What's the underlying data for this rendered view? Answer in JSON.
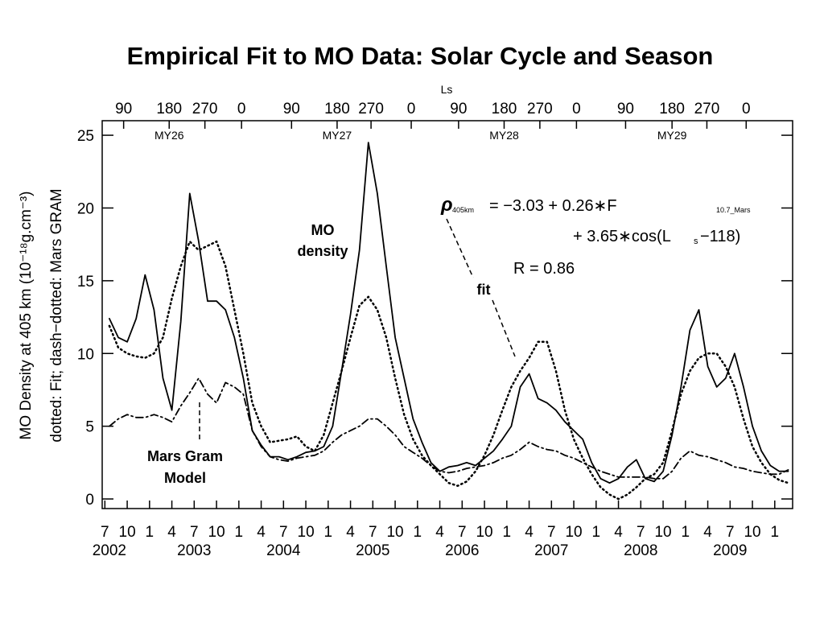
{
  "chart_data": {
    "type": "line",
    "title": "Empirical Fit to MO Data: Solar Cycle and Season",
    "y_label": [
      "MO Density at 405 km (10⁻¹⁸g.cm⁻³)",
      "dotted: Fit; dash−dotted: Mars GRAM"
    ],
    "x2_label": "Ls",
    "xlim": [
      2002.47,
      2010.2
    ],
    "ylim": [
      -0.66,
      26
    ],
    "yticks": [
      0,
      5,
      10,
      15,
      20,
      25
    ],
    "xticks": [
      {
        "value": 2002.5,
        "label": "7"
      },
      {
        "value": 2002.75,
        "label": "10"
      },
      {
        "value": 2003.0,
        "label": "1"
      },
      {
        "value": 2003.25,
        "label": "4"
      },
      {
        "value": 2003.5,
        "label": "7"
      },
      {
        "value": 2003.75,
        "label": "10"
      },
      {
        "value": 2004.0,
        "label": "1"
      },
      {
        "value": 2004.25,
        "label": "4"
      },
      {
        "value": 2004.5,
        "label": "7"
      },
      {
        "value": 2004.75,
        "label": "10"
      },
      {
        "value": 2005.0,
        "label": "1"
      },
      {
        "value": 2005.25,
        "label": "4"
      },
      {
        "value": 2005.5,
        "label": "7"
      },
      {
        "value": 2005.75,
        "label": "10"
      },
      {
        "value": 2006.0,
        "label": "1"
      },
      {
        "value": 2006.25,
        "label": "4"
      },
      {
        "value": 2006.5,
        "label": "7"
      },
      {
        "value": 2006.75,
        "label": "10"
      },
      {
        "value": 2007.0,
        "label": "1"
      },
      {
        "value": 2007.25,
        "label": "4"
      },
      {
        "value": 2007.5,
        "label": "7"
      },
      {
        "value": 2007.75,
        "label": "10"
      },
      {
        "value": 2008.0,
        "label": "1"
      },
      {
        "value": 2008.25,
        "label": "4"
      },
      {
        "value": 2008.5,
        "label": "7"
      },
      {
        "value": 2008.75,
        "label": "10"
      },
      {
        "value": 2009.0,
        "label": "1"
      },
      {
        "value": 2009.25,
        "label": "4"
      },
      {
        "value": 2009.5,
        "label": "7"
      },
      {
        "value": 2009.75,
        "label": "10"
      },
      {
        "value": 2010.0,
        "label": "1"
      }
    ],
    "year_labels": [
      {
        "value": 2002.55,
        "label": "2002"
      },
      {
        "value": 2003.5,
        "label": "2003"
      },
      {
        "value": 2004.5,
        "label": "2004"
      },
      {
        "value": 2005.5,
        "label": "2005"
      },
      {
        "value": 2006.5,
        "label": "2006"
      },
      {
        "value": 2007.5,
        "label": "2007"
      },
      {
        "value": 2008.5,
        "label": "2008"
      },
      {
        "value": 2009.5,
        "label": "2009"
      }
    ],
    "x2ticks": [
      {
        "value": 2002.71,
        "label": "90"
      },
      {
        "value": 2003.22,
        "label": "180"
      },
      {
        "value": 2003.62,
        "label": "270"
      },
      {
        "value": 2004.03,
        "label": "0"
      },
      {
        "value": 2004.59,
        "label": "90"
      },
      {
        "value": 2005.1,
        "label": "180"
      },
      {
        "value": 2005.48,
        "label": "270"
      },
      {
        "value": 2005.93,
        "label": "0"
      },
      {
        "value": 2006.46,
        "label": "90"
      },
      {
        "value": 2006.97,
        "label": "180"
      },
      {
        "value": 2007.37,
        "label": "270"
      },
      {
        "value": 2007.78,
        "label": "0"
      },
      {
        "value": 2008.33,
        "label": "90"
      },
      {
        "value": 2008.85,
        "label": "180"
      },
      {
        "value": 2009.24,
        "label": "270"
      },
      {
        "value": 2009.68,
        "label": "0"
      }
    ],
    "mars_years": [
      {
        "value": 2003.22,
        "label": "MY26"
      },
      {
        "value": 2005.1,
        "label": "MY27"
      },
      {
        "value": 2006.97,
        "label": "MY28"
      },
      {
        "value": 2008.85,
        "label": "MY29"
      }
    ],
    "x": [
      2002.55,
      2002.65,
      2002.75,
      2002.85,
      2002.95,
      2003.05,
      2003.15,
      2003.25,
      2003.35,
      2003.45,
      2003.55,
      2003.65,
      2003.75,
      2003.85,
      2003.95,
      2004.05,
      2004.15,
      2004.25,
      2004.35,
      2004.45,
      2004.55,
      2004.65,
      2004.75,
      2004.85,
      2004.95,
      2005.05,
      2005.15,
      2005.25,
      2005.35,
      2005.45,
      2005.55,
      2005.65,
      2005.75,
      2005.85,
      2005.95,
      2006.05,
      2006.15,
      2006.25,
      2006.35,
      2006.45,
      2006.55,
      2006.65,
      2006.75,
      2006.85,
      2006.95,
      2007.05,
      2007.15,
      2007.25,
      2007.35,
      2007.45,
      2007.55,
      2007.65,
      2007.75,
      2007.85,
      2007.95,
      2008.05,
      2008.15,
      2008.25,
      2008.35,
      2008.45,
      2008.55,
      2008.65,
      2008.75,
      2008.85,
      2008.95,
      2009.05,
      2009.15,
      2009.25,
      2009.35,
      2009.45,
      2009.55,
      2009.65,
      2009.75,
      2009.85,
      2009.95,
      2010.05,
      2010.15
    ],
    "series": [
      {
        "name": "MO density",
        "color": "#000000",
        "style": "solid",
        "values": [
          12.4,
          11.1,
          10.8,
          12.4,
          15.4,
          13.0,
          8.3,
          6.1,
          12.2,
          21.0,
          17.7,
          13.6,
          13.6,
          13.0,
          11.1,
          8.3,
          4.7,
          3.7,
          2.9,
          2.9,
          2.7,
          2.9,
          3.2,
          3.3,
          3.6,
          5.0,
          8.8,
          12.7,
          17.1,
          24.5,
          21.0,
          16.0,
          11.1,
          8.3,
          5.5,
          3.9,
          2.5,
          1.9,
          2.2,
          2.3,
          2.5,
          2.3,
          2.8,
          3.3,
          4.1,
          5.0,
          7.7,
          8.6,
          6.9,
          6.6,
          6.1,
          5.3,
          4.7,
          4.1,
          2.5,
          1.4,
          1.1,
          1.4,
          2.2,
          2.7,
          1.4,
          1.2,
          1.9,
          4.4,
          7.7,
          11.6,
          13.0,
          9.1,
          7.7,
          8.3,
          10.0,
          7.7,
          5.0,
          3.3,
          2.3,
          1.9,
          1.9
        ]
      },
      {
        "name": "fit",
        "color": "#000000",
        "style": "dotted",
        "values": [
          11.9,
          10.4,
          10.0,
          9.8,
          9.7,
          10.0,
          11.1,
          13.8,
          16.0,
          17.7,
          17.1,
          17.4,
          17.7,
          16.0,
          13.0,
          10.0,
          6.6,
          5.0,
          3.9,
          4.0,
          4.1,
          4.3,
          3.6,
          3.3,
          4.4,
          6.6,
          8.8,
          11.1,
          13.3,
          13.9,
          13.0,
          11.1,
          8.3,
          5.8,
          4.1,
          3.0,
          2.3,
          1.7,
          1.1,
          0.9,
          1.2,
          1.9,
          3.0,
          4.4,
          6.1,
          7.7,
          8.8,
          9.7,
          10.8,
          10.8,
          8.8,
          6.1,
          4.1,
          2.8,
          1.7,
          0.8,
          0.3,
          0.0,
          0.3,
          0.8,
          1.4,
          1.7,
          2.5,
          4.7,
          7.2,
          8.8,
          9.7,
          10.0,
          10.0,
          9.1,
          7.7,
          5.5,
          3.6,
          2.5,
          1.7,
          1.3,
          1.1
        ]
      },
      {
        "name": "Mars Gram Model",
        "color": "#000000",
        "style": "dashdot",
        "values": [
          5.0,
          5.5,
          5.8,
          5.6,
          5.6,
          5.8,
          5.6,
          5.3,
          6.4,
          7.3,
          8.3,
          7.2,
          6.6,
          8.0,
          7.7,
          7.2,
          4.7,
          3.6,
          2.9,
          2.7,
          2.6,
          2.8,
          2.9,
          3.0,
          3.3,
          3.9,
          4.4,
          4.7,
          5.0,
          5.5,
          5.5,
          5.0,
          4.4,
          3.6,
          3.2,
          2.8,
          2.3,
          1.9,
          1.8,
          1.9,
          2.1,
          2.2,
          2.3,
          2.5,
          2.8,
          3.0,
          3.4,
          3.9,
          3.6,
          3.4,
          3.3,
          3.0,
          2.8,
          2.5,
          2.2,
          1.9,
          1.7,
          1.5,
          1.5,
          1.5,
          1.5,
          1.4,
          1.4,
          1.9,
          2.8,
          3.3,
          3.0,
          2.9,
          2.7,
          2.5,
          2.2,
          2.1,
          1.9,
          1.8,
          1.7,
          1.7,
          2.0
        ]
      }
    ],
    "annotations": {
      "mo_density": [
        "MO",
        "density"
      ],
      "fit": "fit",
      "gram": [
        "Mars Gram",
        "Model"
      ]
    },
    "equation": {
      "rho": "ρ",
      "rho_sub": "405km",
      "part1": "= −3.03 + 0.26∗F",
      "f_sub": "10.7_Mars",
      "part2": "+ 3.65∗cos(L",
      "l_sub": "s",
      "part3": "−118)",
      "r": "R = 0.86"
    }
  }
}
